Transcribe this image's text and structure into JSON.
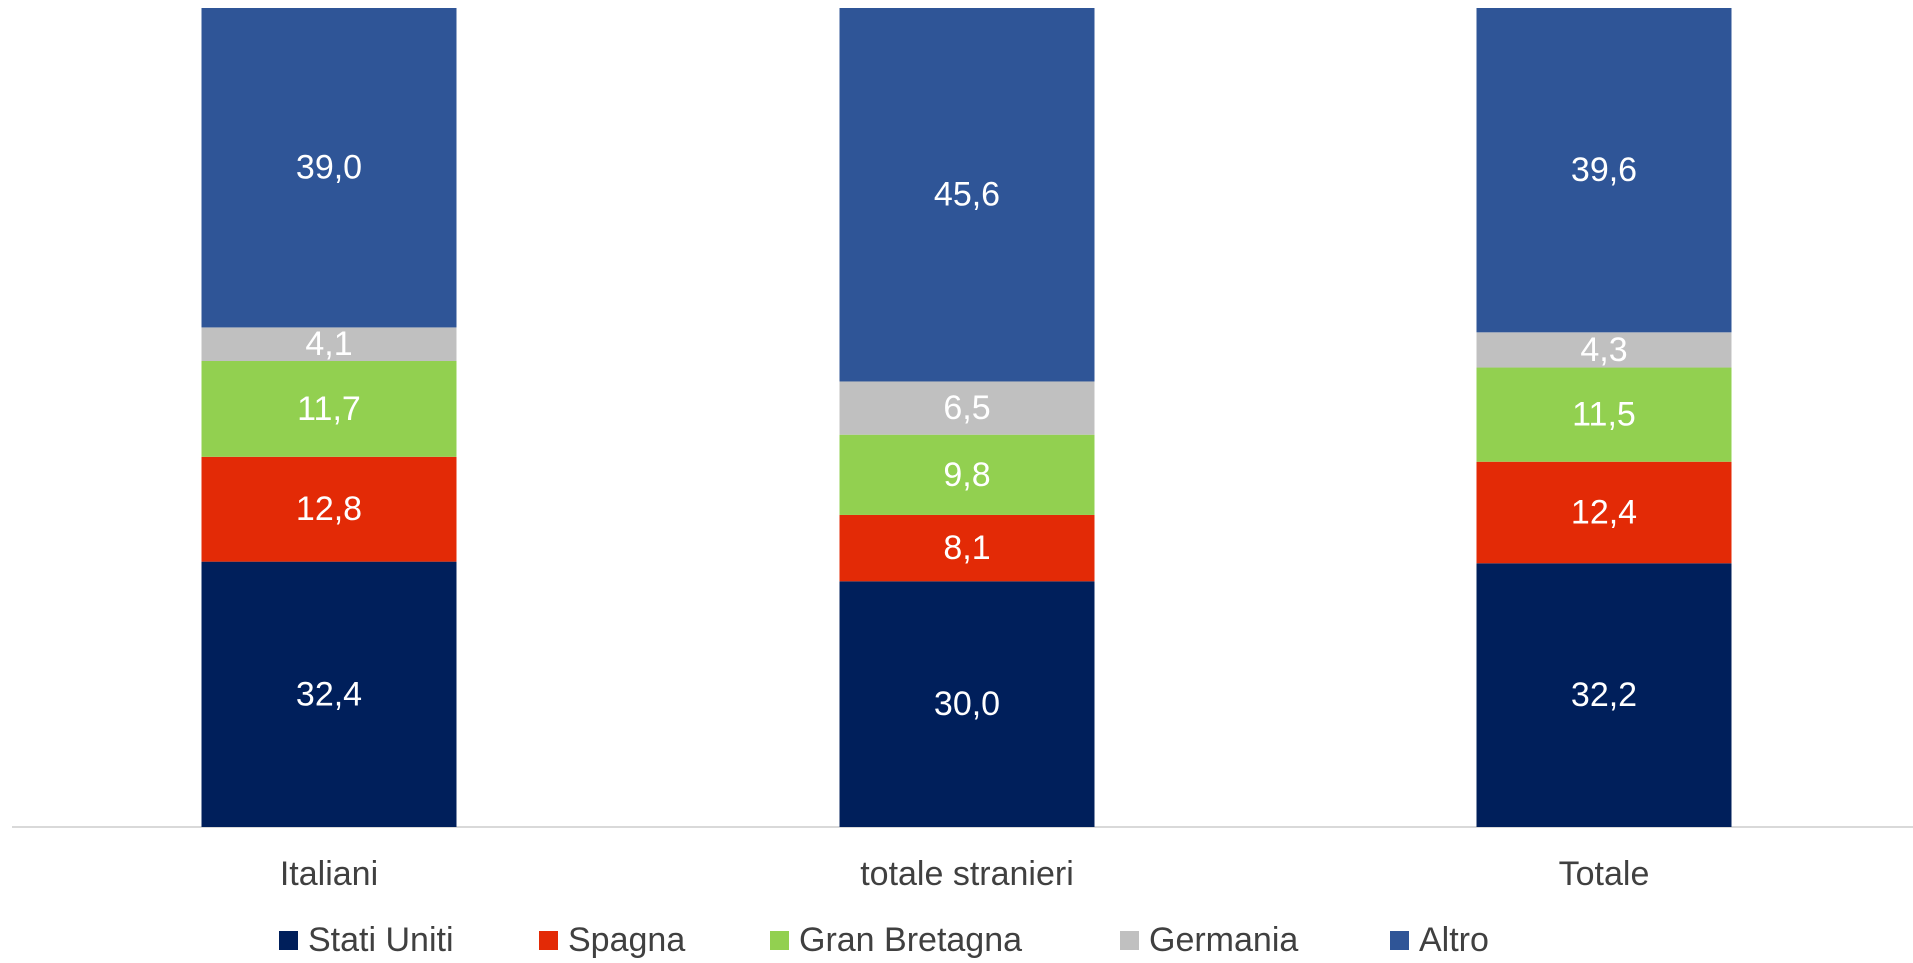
{
  "chart_data": {
    "type": "stacked_bar",
    "categories": [
      "Italiani",
      "totale stranieri",
      "Totale"
    ],
    "ylim": [
      0,
      100
    ],
    "series": [
      {
        "name": "Stati Uniti",
        "color": "#001f5b",
        "values": [
          32.4,
          30.0,
          32.2
        ],
        "value_labels": [
          "32,4",
          "30,0",
          "32,2"
        ]
      },
      {
        "name": "Spagna",
        "color": "#e32a06",
        "values": [
          12.8,
          8.1,
          12.4
        ],
        "value_labels": [
          "12,8",
          "8,1",
          "12,4"
        ]
      },
      {
        "name": "Gran Bretagna",
        "color": "#92d050",
        "values": [
          11.7,
          9.8,
          11.5
        ],
        "value_labels": [
          "11,7",
          "9,8",
          "11,5"
        ]
      },
      {
        "name": "Germania",
        "color": "#c0c0c0",
        "values": [
          4.1,
          6.5,
          4.3
        ],
        "value_labels": [
          "4,1",
          "6,5",
          "4,3"
        ]
      },
      {
        "name": "Altro",
        "color": "#2f5597",
        "values": [
          39.0,
          45.6,
          39.6
        ],
        "value_labels": [
          "39,0",
          "45,6",
          "39,6"
        ]
      }
    ]
  }
}
